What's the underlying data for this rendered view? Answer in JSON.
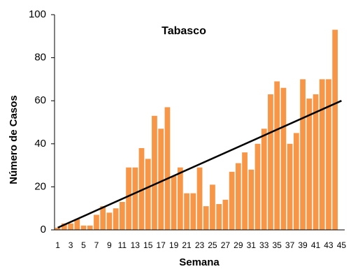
{
  "chart_data": {
    "type": "bar",
    "title": "Tabasco",
    "x_label": "Semana",
    "y_label": "Número de Casos",
    "categories": [
      "1",
      null,
      "3",
      null,
      "5",
      null,
      "7",
      null,
      "9",
      null,
      "11",
      null,
      "13",
      null,
      "15",
      null,
      "17",
      null,
      "19",
      null,
      "21",
      null,
      "23",
      null,
      "25",
      null,
      "27",
      null,
      "29",
      null,
      "31",
      null,
      "33",
      null,
      "35",
      null,
      "37",
      null,
      "39",
      null,
      "41",
      null,
      "43",
      null,
      "45"
    ],
    "values": [
      1,
      3,
      3,
      5,
      2,
      2,
      7,
      11,
      8,
      10,
      13,
      29,
      29,
      38,
      33,
      53,
      47,
      57,
      25,
      29,
      17,
      17,
      29,
      11,
      21,
      12,
      14,
      27,
      31,
      36,
      28,
      40,
      47,
      63,
      69,
      66,
      40,
      45,
      70,
      61,
      63,
      70,
      70,
      93,
      null
    ],
    "color": "#f79646",
    "trendline": {
      "x": [
        1,
        45
      ],
      "values": [
        1,
        60
      ],
      "color": "#000000"
    },
    "ylim": [
      0,
      100
    ],
    "yticks": [
      0,
      20,
      40,
      60,
      80,
      100
    ],
    "grid": false
  }
}
